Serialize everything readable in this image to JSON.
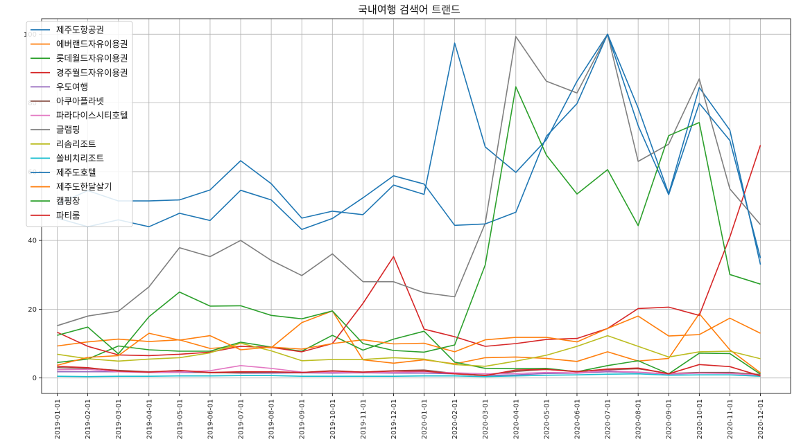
{
  "chart_data": {
    "type": "line",
    "title": "국내여행 검색어 트랜드",
    "xlabel": "",
    "ylabel": "",
    "ylim": [
      -4.5,
      104.5
    ],
    "yticks": [
      0,
      20,
      40,
      60,
      80,
      100
    ],
    "grid": true,
    "legend_position": "top-left",
    "x": [
      "2019-01-01",
      "2019-02-01",
      "2019-03-01",
      "2019-04-01",
      "2019-05-01",
      "2019-06-01",
      "2019-07-01",
      "2019-08-01",
      "2019-09-01",
      "2019-10-01",
      "2019-11-01",
      "2019-12-01",
      "2020-01-01",
      "2020-02-01",
      "2020-03-01",
      "2020-04-01",
      "2020-05-01",
      "2020-06-01",
      "2020-07-01",
      "2020-08-01",
      "2020-09-01",
      "2020-10-01",
      "2020-11-01",
      "2020-12-01"
    ],
    "series": [
      {
        "name": "제주도항공권",
        "color": "#1f77b4",
        "values": [
          50.5,
          54.5,
          51.5,
          51.5,
          51.8,
          54.7,
          63.2,
          56.5,
          46.5,
          48.5,
          47.5,
          56.1,
          53.4,
          97.4,
          67.2,
          59.8,
          69.3,
          86.3,
          100,
          78.5,
          53.6,
          84.5,
          72.1,
          33
        ]
      },
      {
        "name": "에버랜드자유이용권",
        "color": "#ff7f0e",
        "values": [
          9.3,
          10.5,
          11.3,
          10.6,
          11.1,
          8.6,
          9.2,
          8.8,
          16.1,
          19.5,
          5.3,
          4.3,
          5.3,
          4.1,
          5.9,
          6.1,
          5.7,
          4.8,
          7.6,
          4.9,
          5.7,
          18.7,
          8.2,
          1.5
        ]
      },
      {
        "name": "롯데월드자유이용권",
        "color": "#2ca02c",
        "values": [
          4.5,
          5.5,
          9.3,
          8.2,
          7.8,
          7.8,
          10.4,
          9.0,
          7.8,
          12.4,
          8.1,
          11.3,
          13.6,
          4.6,
          2.8,
          2.7,
          2.8,
          1.8,
          3.6,
          5.0,
          1.2,
          7.2,
          7.1,
          1.1
        ]
      },
      {
        "name": "경주월드자유이용권",
        "color": "#d62728",
        "values": [
          13.3,
          9.2,
          6.7,
          6.5,
          6.9,
          7.5,
          9.2,
          8.9,
          7.6,
          10.0,
          21.7,
          35.3,
          14.2,
          12.0,
          9.2,
          10.0,
          11.2,
          11.5,
          14.4,
          20.2,
          20.6,
          18.2,
          41,
          67.7
        ]
      },
      {
        "name": "우도여행",
        "color": "#9467bd",
        "values": [
          1.8,
          1.8,
          1.8,
          1.6,
          1.6,
          1.6,
          1.4,
          1.4,
          1.5,
          1.4,
          1.5,
          1.4,
          1.4,
          1.2,
          0.7,
          0.9,
          1.3,
          1.4,
          1.8,
          1.6,
          1.1,
          1.4,
          1.6,
          0.9
        ]
      },
      {
        "name": "아쿠아플라넷",
        "color": "#8c564b",
        "values": [
          3.0,
          2.8,
          2.2,
          1.8,
          2.0,
          1.5,
          1.5,
          1.7,
          1.6,
          2.1,
          1.7,
          2.1,
          2.3,
          1.3,
          0.8,
          1.9,
          2.5,
          1.9,
          2.4,
          2.7,
          1.3,
          1.6,
          1.6,
          1.0
        ]
      },
      {
        "name": "파라다이스시티호텔",
        "color": "#e377c2",
        "values": [
          2.4,
          2.5,
          1.8,
          1.7,
          1.7,
          2.1,
          3.6,
          2.8,
          1.7,
          1.6,
          1.6,
          1.6,
          1.8,
          1.5,
          1.2,
          1.3,
          1.6,
          1.5,
          2.1,
          1.7,
          1.2,
          1.4,
          1.3,
          0.8
        ]
      },
      {
        "name": "글램핑",
        "color": "#7f7f7f",
        "values": [
          15.2,
          18.0,
          19.4,
          26.5,
          37.9,
          35.3,
          40.0,
          34.2,
          29.8,
          36.1,
          28.0,
          28.0,
          24.8,
          23.6,
          45.0,
          99.3,
          86.3,
          82.9,
          100,
          63.0,
          68.0,
          87.0,
          55.0,
          44.6
        ]
      },
      {
        "name": "리솜리조트",
        "color": "#bcbd22",
        "values": [
          6.9,
          5.6,
          4.9,
          5.5,
          5.9,
          7.3,
          10.1,
          7.9,
          5.0,
          5.4,
          5.4,
          5.9,
          5.5,
          3.9,
          3.4,
          4.9,
          6.6,
          9.2,
          12.3,
          9.2,
          6.1,
          7.6,
          7.8,
          5.6
        ]
      },
      {
        "name": "쏠비치리조트",
        "color": "#17becf",
        "values": [
          0.5,
          0.4,
          0.5,
          0.5,
          0.6,
          0.6,
          0.7,
          0.7,
          0.5,
          0.5,
          0.5,
          0.5,
          0.6,
          0.6,
          0.4,
          0.6,
          0.8,
          0.9,
          1.1,
          1.2,
          0.8,
          0.9,
          0.9,
          0.5
        ]
      },
      {
        "name": "제주도호텔",
        "color": "#1f77b4",
        "values": [
          46.5,
          44.0,
          46.0,
          44.0,
          47.9,
          45.8,
          54.6,
          51.8,
          43.2,
          46.4,
          52.4,
          58.8,
          56.4,
          44.4,
          44.8,
          48.2,
          70.3,
          79.8,
          100,
          73.4,
          53.3,
          79.9,
          69.1,
          34.9
        ]
      },
      {
        "name": "제주도한달살기",
        "color": "#ff7f0e",
        "values": [
          3.7,
          6.0,
          6.5,
          13.0,
          11.0,
          12.3,
          8.2,
          9.0,
          8.4,
          10.0,
          11.1,
          9.9,
          10.1,
          7.6,
          11.1,
          11.8,
          11.8,
          10.5,
          14.4,
          18.0,
          12.2,
          12.6,
          17.4,
          13.0
        ]
      },
      {
        "name": "캠핑장",
        "color": "#2ca02c",
        "values": [
          12.4,
          14.8,
          7.0,
          17.8,
          25.0,
          20.9,
          21.0,
          18.2,
          17.2,
          19.5,
          10.0,
          8.0,
          7.5,
          9.6,
          32.9,
          84.7,
          64.8,
          53.5,
          60.6,
          44.3,
          70.5,
          74.3,
          30.1,
          27.3
        ]
      },
      {
        "name": "파티룸",
        "color": "#d62728",
        "values": [
          3.4,
          3.0,
          2.0,
          1.7,
          2.2,
          1.6,
          1.8,
          1.8,
          1.6,
          2.0,
          1.7,
          2.0,
          2.0,
          1.2,
          0.7,
          2.3,
          2.5,
          1.8,
          2.6,
          2.9,
          1.2,
          3.9,
          3.3,
          0.6
        ]
      }
    ]
  }
}
